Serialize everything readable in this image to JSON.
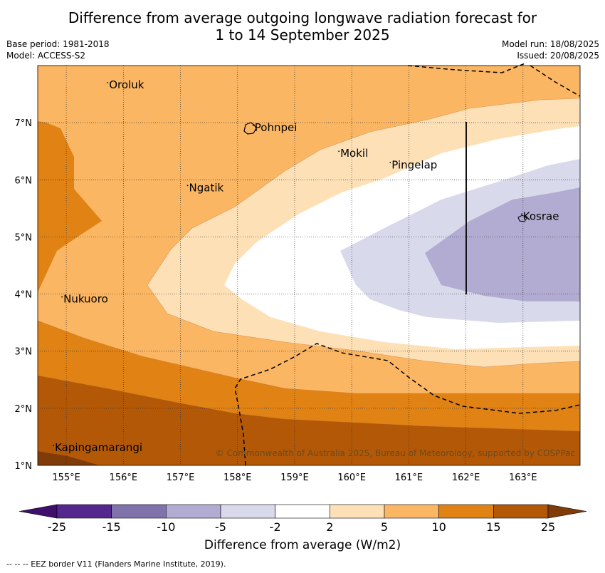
{
  "title_line1": "Difference from average outgoing longwave radiation forecast for",
  "title_line2": "1 to 14 September 2025",
  "base_period": "Base period: 1981-2018",
  "model": "Model: ACCESS-S2",
  "model_run": "Model run: 18/08/2025",
  "issued": "Issued: 20/08/2025",
  "copyright": "© Commonwealth of Australia 2025, Bureau of Meteorology, supported by COSPPac",
  "footnote": "--  --  -- EEZ border V11 (Flanders Marine Institute, 2019).",
  "colorbar": {
    "title": "Difference from average (W/m2)",
    "ticks": [
      "-25",
      "-15",
      "-10",
      "-5",
      "-2",
      "2",
      "5",
      "10",
      "15",
      "25"
    ],
    "colors": [
      "#3f0f6b",
      "#54278f",
      "#8073ac",
      "#b2abd2",
      "#d8daeb",
      "#ffffff",
      "#fee0b6",
      "#fbb663",
      "#e08214",
      "#b35806",
      "#7f3b08"
    ]
  },
  "axes": {
    "x_labels": [
      "155°E",
      "156°E",
      "157°E",
      "158°E",
      "159°E",
      "160°E",
      "161°E",
      "162°E",
      "163°E"
    ],
    "y_labels": [
      "7°N",
      "6°N",
      "5°N",
      "4°N",
      "3°N",
      "2°N",
      "1°N"
    ],
    "lon_range": [
      154.5,
      164.0
    ],
    "lat_range": [
      1.0,
      8.0
    ]
  },
  "places": [
    {
      "name": "Oroluk",
      "lon": 155.75,
      "lat": 7.6
    },
    {
      "name": "Pohnpei",
      "lon": 158.3,
      "lat": 6.85
    },
    {
      "name": "Mokil",
      "lon": 159.8,
      "lat": 6.4
    },
    {
      "name": "Pingelap",
      "lon": 160.7,
      "lat": 6.2
    },
    {
      "name": "Ngatik",
      "lon": 157.15,
      "lat": 5.8
    },
    {
      "name": "Kosrae",
      "lon": 163.0,
      "lat": 5.3
    },
    {
      "name": "Nukuoro",
      "lon": 154.95,
      "lat": 3.85
    },
    {
      "name": "Kapingamarangi",
      "lon": 154.8,
      "lat": 1.25
    }
  ]
}
